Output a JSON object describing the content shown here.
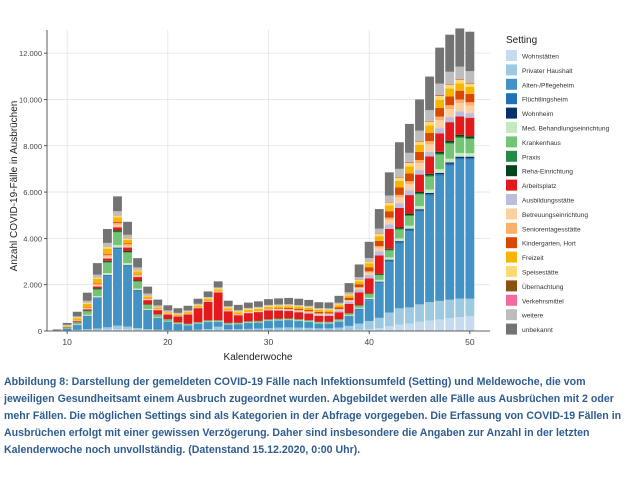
{
  "chart_data": {
    "type": "bar",
    "stacked": true,
    "xlabel": "Kalenderwoche",
    "ylabel": "Anzahl COVID-19-Fälle in Ausbrüchen",
    "legend_title": "Setting",
    "legend_position": "right",
    "grid": true,
    "ylim": [
      0,
      13000
    ],
    "xlim": [
      8,
      52
    ],
    "x_ticks": [
      10,
      20,
      30,
      40,
      50
    ],
    "x_tick_labels": [
      "10",
      "20",
      "30",
      "40",
      "50"
    ],
    "y_ticks": [
      0,
      2000,
      4000,
      6000,
      8000,
      10000,
      12000
    ],
    "y_tick_labels": [
      "0",
      "2.000",
      "4.000",
      "6.000",
      "8.000",
      "10.000",
      "12.000"
    ],
    "x": [
      9,
      10,
      11,
      12,
      13,
      14,
      15,
      16,
      17,
      18,
      19,
      20,
      21,
      22,
      23,
      24,
      25,
      26,
      27,
      28,
      29,
      30,
      31,
      32,
      33,
      34,
      35,
      36,
      37,
      38,
      39,
      40,
      41,
      42,
      43,
      44,
      45,
      46,
      47,
      48,
      49,
      50
    ],
    "series": [
      {
        "name": "Wohnstätten",
        "color": "#c6dbef",
        "values": [
          0,
          5,
          10,
          20,
          30,
          60,
          80,
          70,
          50,
          30,
          20,
          15,
          10,
          10,
          15,
          20,
          25,
          20,
          20,
          20,
          25,
          25,
          25,
          25,
          25,
          25,
          25,
          25,
          30,
          40,
          60,
          80,
          120,
          200,
          280,
          320,
          400,
          450,
          500,
          550,
          600,
          650
        ]
      },
      {
        "name": "Privater Haushalt",
        "color": "#9ecae1",
        "values": [
          5,
          20,
          40,
          60,
          80,
          100,
          150,
          120,
          80,
          50,
          40,
          30,
          25,
          25,
          40,
          60,
          160,
          50,
          60,
          70,
          80,
          100,
          120,
          130,
          120,
          110,
          90,
          90,
          120,
          180,
          260,
          350,
          450,
          600,
          700,
          700,
          750,
          800,
          800,
          800,
          800,
          750
        ]
      },
      {
        "name": "Alten-/Pflegeheim",
        "color": "#4292c6",
        "values": [
          20,
          80,
          200,
          550,
          1300,
          2200,
          3300,
          2600,
          1600,
          800,
          500,
          350,
          250,
          200,
          250,
          300,
          200,
          200,
          200,
          250,
          250,
          300,
          300,
          300,
          280,
          250,
          200,
          200,
          250,
          400,
          600,
          900,
          1500,
          2200,
          2800,
          3300,
          4000,
          4600,
          5400,
          5800,
          6000,
          6000
        ]
      },
      {
        "name": "Flüchtlingsheim",
        "color": "#2171b5",
        "values": [
          0,
          5,
          10,
          20,
          30,
          40,
          50,
          40,
          30,
          20,
          10,
          10,
          10,
          10,
          10,
          10,
          10,
          10,
          10,
          10,
          10,
          10,
          10,
          10,
          10,
          10,
          10,
          10,
          15,
          20,
          30,
          30,
          40,
          50,
          60,
          60,
          60,
          60,
          70,
          70,
          70,
          70
        ]
      },
      {
        "name": "Wohnheim",
        "color": "#08306b",
        "values": [
          0,
          2,
          5,
          8,
          10,
          15,
          20,
          15,
          10,
          8,
          5,
          5,
          5,
          5,
          5,
          5,
          5,
          5,
          5,
          5,
          5,
          5,
          5,
          5,
          5,
          5,
          5,
          5,
          5,
          8,
          10,
          15,
          20,
          30,
          40,
          40,
          50,
          50,
          60,
          60,
          60,
          60
        ]
      },
      {
        "name": "Med. Behandlungseinrichtung",
        "color": "#c7e9c0",
        "values": [
          2,
          10,
          20,
          40,
          60,
          90,
          110,
          90,
          60,
          40,
          25,
          20,
          15,
          15,
          15,
          15,
          15,
          15,
          15,
          15,
          15,
          15,
          20,
          20,
          20,
          20,
          20,
          20,
          25,
          30,
          40,
          60,
          80,
          100,
          120,
          130,
          140,
          150,
          160,
          160,
          160,
          150
        ]
      },
      {
        "name": "Krankenhaus",
        "color": "#74c476",
        "values": [
          10,
          30,
          80,
          150,
          280,
          450,
          550,
          450,
          300,
          170,
          100,
          70,
          50,
          40,
          40,
          40,
          40,
          40,
          40,
          40,
          40,
          40,
          40,
          40,
          40,
          40,
          40,
          40,
          50,
          70,
          90,
          150,
          200,
          300,
          380,
          420,
          500,
          560,
          620,
          650,
          650,
          600
        ]
      },
      {
        "name": "Praxis",
        "color": "#238b45",
        "values": [
          1,
          5,
          10,
          15,
          25,
          35,
          40,
          30,
          20,
          15,
          10,
          8,
          6,
          6,
          6,
          6,
          6,
          6,
          6,
          6,
          6,
          6,
          6,
          6,
          6,
          6,
          6,
          6,
          8,
          10,
          15,
          20,
          25,
          35,
          40,
          40,
          45,
          50,
          50,
          50,
          50,
          50
        ]
      },
      {
        "name": "Reha-Einrichtung",
        "color": "#00441b",
        "values": [
          1,
          5,
          10,
          15,
          25,
          40,
          50,
          40,
          30,
          20,
          10,
          8,
          6,
          6,
          6,
          6,
          6,
          6,
          6,
          6,
          6,
          6,
          6,
          6,
          6,
          6,
          6,
          6,
          8,
          10,
          15,
          20,
          30,
          40,
          50,
          60,
          60,
          70,
          80,
          80,
          80,
          80
        ]
      },
      {
        "name": "Arbeitsplatz",
        "color": "#e31a1c",
        "values": [
          5,
          20,
          40,
          60,
          80,
          100,
          130,
          150,
          150,
          180,
          180,
          200,
          250,
          400,
          600,
          800,
          1200,
          500,
          320,
          350,
          380,
          380,
          350,
          320,
          300,
          280,
          250,
          250,
          300,
          400,
          550,
          650,
          800,
          850,
          850,
          800,
          750,
          750,
          800,
          800,
          800,
          800
        ]
      },
      {
        "name": "Ausbildungsstätte",
        "color": "#bcbddc",
        "values": [
          0,
          2,
          3,
          5,
          5,
          5,
          5,
          5,
          5,
          5,
          5,
          5,
          5,
          5,
          5,
          5,
          10,
          10,
          10,
          10,
          10,
          20,
          30,
          40,
          40,
          50,
          60,
          60,
          80,
          100,
          120,
          150,
          180,
          200,
          200,
          200,
          200,
          200,
          220,
          220,
          220,
          200
        ]
      },
      {
        "name": "Betreuungseinrichtung",
        "color": "#fdd0a2",
        "values": [
          2,
          10,
          20,
          40,
          60,
          90,
          100,
          80,
          60,
          40,
          30,
          25,
          20,
          20,
          20,
          20,
          25,
          25,
          25,
          30,
          30,
          30,
          30,
          30,
          35,
          35,
          35,
          35,
          40,
          50,
          70,
          100,
          150,
          200,
          250,
          280,
          300,
          320,
          350,
          350,
          350,
          320
        ]
      },
      {
        "name": "Seniorentagesstätte",
        "color": "#fdae6b",
        "values": [
          1,
          5,
          15,
          30,
          50,
          70,
          80,
          60,
          40,
          25,
          15,
          10,
          8,
          8,
          8,
          8,
          8,
          8,
          8,
          8,
          8,
          8,
          10,
          10,
          10,
          10,
          10,
          10,
          15,
          20,
          30,
          50,
          70,
          90,
          110,
          120,
          130,
          140,
          150,
          160,
          160,
          150
        ]
      },
      {
        "name": "Kindergarten, Hort",
        "color": "#d94801",
        "values": [
          1,
          5,
          10,
          20,
          30,
          40,
          40,
          30,
          20,
          15,
          10,
          8,
          8,
          8,
          8,
          8,
          8,
          8,
          8,
          10,
          10,
          15,
          30,
          50,
          60,
          70,
          70,
          60,
          80,
          100,
          130,
          180,
          230,
          280,
          320,
          340,
          350,
          360,
          380,
          380,
          380,
          360
        ]
      },
      {
        "name": "Freizeit",
        "color": "#f7b500",
        "values": [
          5,
          30,
          80,
          140,
          180,
          220,
          200,
          150,
          120,
          80,
          60,
          50,
          50,
          60,
          70,
          80,
          80,
          80,
          80,
          80,
          80,
          80,
          80,
          80,
          80,
          80,
          80,
          80,
          90,
          100,
          130,
          160,
          200,
          250,
          280,
          300,
          300,
          320,
          340,
          340,
          320,
          300
        ]
      },
      {
        "name": "Speisestätte",
        "color": "#fed976",
        "values": [
          2,
          10,
          30,
          50,
          70,
          90,
          90,
          70,
          50,
          30,
          20,
          20,
          20,
          25,
          30,
          40,
          40,
          40,
          40,
          40,
          40,
          40,
          40,
          40,
          40,
          40,
          40,
          40,
          45,
          50,
          60,
          80,
          100,
          120,
          140,
          150,
          150,
          160,
          170,
          170,
          160,
          150
        ]
      },
      {
        "name": "Übernachtung",
        "color": "#8c510a",
        "values": [
          0,
          2,
          4,
          6,
          8,
          10,
          10,
          8,
          6,
          4,
          3,
          3,
          3,
          3,
          3,
          3,
          3,
          3,
          3,
          3,
          3,
          3,
          3,
          3,
          3,
          3,
          3,
          3,
          4,
          5,
          8,
          10,
          12,
          15,
          18,
          20,
          20,
          22,
          22,
          22,
          22,
          20
        ]
      },
      {
        "name": "Verkehrsmittel",
        "color": "#f768a1",
        "values": [
          0,
          2,
          4,
          6,
          8,
          10,
          10,
          8,
          6,
          4,
          3,
          3,
          3,
          3,
          3,
          3,
          3,
          3,
          3,
          3,
          3,
          3,
          3,
          3,
          3,
          3,
          3,
          3,
          4,
          5,
          6,
          8,
          10,
          12,
          14,
          15,
          15,
          16,
          16,
          16,
          16,
          15
        ]
      },
      {
        "name": "weitere",
        "color": "#bdbdbd",
        "values": [
          5,
          20,
          40,
          70,
          100,
          140,
          160,
          140,
          110,
          80,
          60,
          50,
          40,
          40,
          40,
          40,
          40,
          40,
          40,
          40,
          40,
          40,
          40,
          40,
          40,
          40,
          40,
          40,
          50,
          70,
          100,
          140,
          200,
          280,
          350,
          400,
          430,
          460,
          500,
          520,
          520,
          500
        ]
      },
      {
        "name": "unbekannt",
        "color": "#737373",
        "values": [
          20,
          80,
          200,
          350,
          500,
          600,
          640,
          560,
          400,
          300,
          250,
          220,
          200,
          200,
          220,
          240,
          260,
          240,
          230,
          230,
          240,
          250,
          260,
          270,
          270,
          260,
          250,
          250,
          300,
          400,
          550,
          700,
          850,
          1000,
          1150,
          1250,
          1350,
          1450,
          1550,
          1600,
          1650,
          1700
        ]
      }
    ]
  },
  "caption": "Abbildung 8: Darstellung der gemeldeten COVID-19 Fälle nach Infektionsumfeld (Setting) und Meldewoche, die vom jeweiligen Gesundheitsamt einem Ausbruch zugeordnet wurden. Abgebildet werden alle Fälle aus Ausbrüchen mit 2 oder mehr Fällen. Die möglichen Settings sind als Kategorien in der Abfrage vorgegeben. Die Erfassung von COVID-19 Fällen in Ausbrüchen erfolgt mit einer gewissen Verzögerung. Daher sind insbesondere die Angaben zur Anzahl in der letzten Kalenderwoche noch unvollständig. (Datenstand 15.12.2020, 0:00 Uhr)."
}
